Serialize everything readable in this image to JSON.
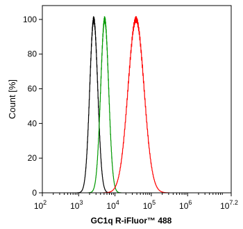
{
  "chart_data": {
    "type": "line",
    "title": "",
    "xlabel": "GC1q R-iFluor™ 488",
    "ylabel": "Count [%]",
    "x_scale": "log",
    "xlim": [
      100,
      15848932
    ],
    "ylim": [
      0,
      108
    ],
    "x_ticks": [
      {
        "value": 100,
        "base": "10",
        "exp": "2"
      },
      {
        "value": 1000,
        "base": "10",
        "exp": "3"
      },
      {
        "value": 10000,
        "base": "10",
        "exp": "4"
      },
      {
        "value": 100000,
        "base": "10",
        "exp": "5"
      },
      {
        "value": 1000000,
        "base": "10",
        "exp": "6"
      },
      {
        "value": 15848932,
        "base": "10",
        "exp": "7.2"
      }
    ],
    "y_ticks": [
      0,
      20,
      40,
      60,
      80,
      100
    ],
    "grid": false,
    "series": [
      {
        "color": "#000000",
        "peak_x": 2600,
        "peak_y": 100,
        "log_sigma": 0.11
      },
      {
        "color": "#009900",
        "peak_x": 5200,
        "peak_y": 100,
        "log_sigma": 0.11
      },
      {
        "color": "#ff0000",
        "peak_x": 38000,
        "peak_y": 100,
        "log_sigma": 0.22
      }
    ]
  }
}
